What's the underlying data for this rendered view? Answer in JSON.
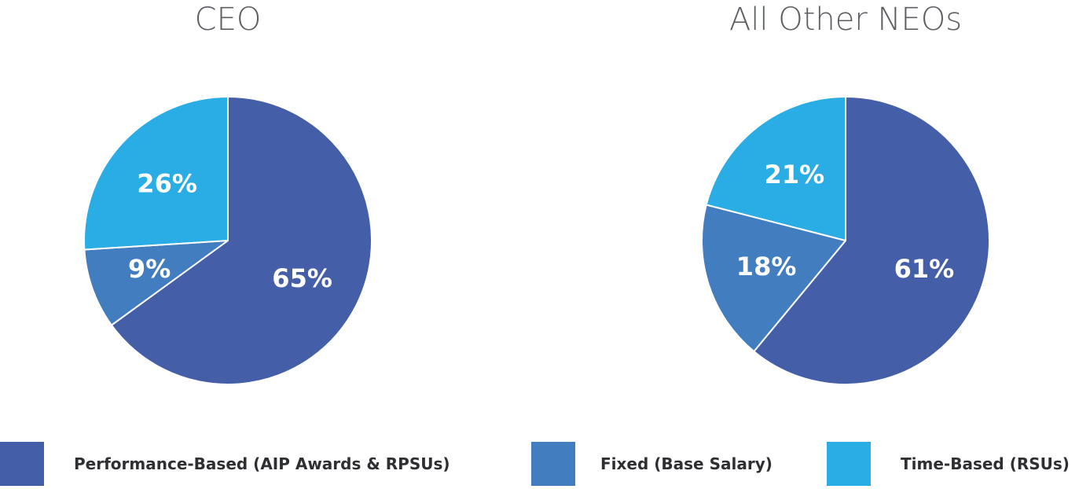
{
  "chart_data": [
    {
      "type": "pie",
      "title": "CEO",
      "slices": [
        {
          "name": "Performance-Based (AIP Awards & RPSUs)",
          "value": 65,
          "label": "65%",
          "color": "#455ea8"
        },
        {
          "name": "Fixed (Base Salary)",
          "value": 9,
          "label": "9%",
          "color": "#427dc0"
        },
        {
          "name": "Time-Based (RSUs)",
          "value": 26,
          "label": "26%",
          "color": "#2aade5"
        }
      ]
    },
    {
      "type": "pie",
      "title": "All Other NEOs",
      "slices": [
        {
          "name": "Performance-Based (AIP Awards & RPSUs)",
          "value": 61,
          "label": "61%",
          "color": "#455ea8"
        },
        {
          "name": "Fixed (Base Salary)",
          "value": 18,
          "label": "18%",
          "color": "#427dc0"
        },
        {
          "name": "Time-Based (RSUs)",
          "value": 21,
          "label": "21%",
          "color": "#2aade5"
        }
      ]
    }
  ],
  "legend": {
    "position": "bottom",
    "items": [
      {
        "label": "Performance-Based (AIP Awards & RPSUs)",
        "color": "#455ea8"
      },
      {
        "label": "Fixed (Base Salary)",
        "color": "#427dc0"
      },
      {
        "label": "Time-Based (RSUs)",
        "color": "#2aade5"
      }
    ]
  }
}
